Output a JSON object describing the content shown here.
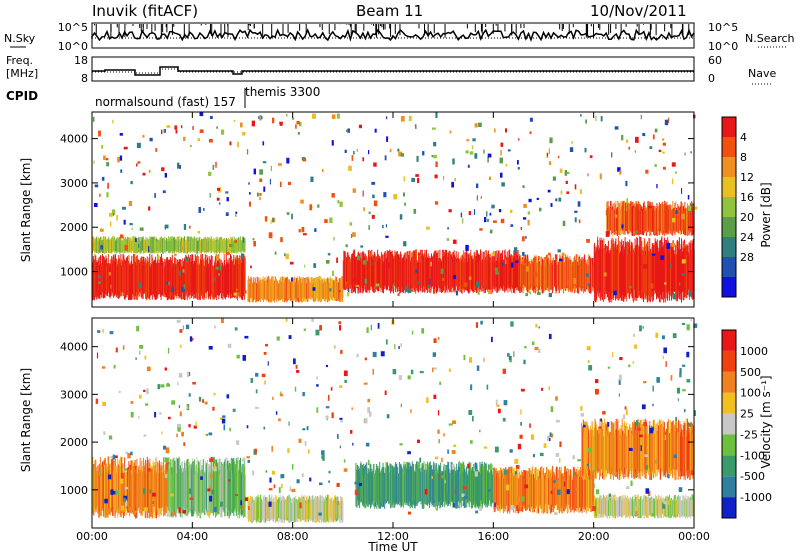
{
  "header": {
    "station": "Inuvik (fitACF)",
    "beam": "Beam 11",
    "date": "10/Nov/2011"
  },
  "noise_panel": {
    "left_label": "N.Sky",
    "right_label": "N.Search",
    "left_ticks": [
      "10^5",
      "10^0"
    ],
    "right_ticks": [
      "10^5",
      "10^0"
    ]
  },
  "freq_panel": {
    "left_label_line1": "Freq.",
    "left_label_line2": "[MHz]",
    "right_label": "Nave",
    "left_ticks": [
      "18",
      "8"
    ],
    "right_ticks": [
      "60",
      "0"
    ]
  },
  "cpid": {
    "label": "CPID",
    "modes": [
      {
        "name": "normalsound (fast) 157",
        "start_hour": 0,
        "end_hour": 6.1
      },
      {
        "name": "themis 3300",
        "start_hour": 6.1,
        "end_hour": 24
      }
    ]
  },
  "chart_data": [
    {
      "type": "heatmap",
      "quantity": "Power",
      "ylabel": "Slant Range [km]",
      "xlabel": "Time UT",
      "xlim_hours": [
        0,
        24
      ],
      "ylim": [
        200,
        4600
      ],
      "x_ticks": [
        "00:00",
        "04:00",
        "08:00",
        "12:00",
        "16:00",
        "20:00",
        "00:00"
      ],
      "y_ticks": [
        1000,
        2000,
        3000,
        4000
      ],
      "colorbar": {
        "label": "Power [dB]",
        "ticks": [
          "4",
          "8",
          "12",
          "16",
          "20",
          "24",
          "28"
        ],
        "colors": [
          "#1010e0",
          "#2050b0",
          "#2f7f80",
          "#5a9e4a",
          "#8fc43c",
          "#e8c020",
          "#f09020",
          "#f05010",
          "#e81818"
        ]
      },
      "regions": [
        {
          "t0": 0.0,
          "t1": 6.1,
          "r0": 350,
          "r1": 1400,
          "level": 8
        },
        {
          "t0": 0.0,
          "t1": 6.1,
          "r0": 1400,
          "r1": 1800,
          "level": 4
        },
        {
          "t0": 6.2,
          "t1": 10.0,
          "r0": 300,
          "r1": 900,
          "level": 6
        },
        {
          "t0": 10.0,
          "t1": 17.0,
          "r0": 500,
          "r1": 1500,
          "level": 8
        },
        {
          "t0": 17.0,
          "t1": 20.0,
          "r0": 500,
          "r1": 1400,
          "level": 7
        },
        {
          "t0": 20.0,
          "t1": 24.0,
          "r0": 300,
          "r1": 1800,
          "level": 8
        },
        {
          "t0": 20.5,
          "t1": 24.0,
          "r0": 1800,
          "r1": 2600,
          "level": 7
        }
      ]
    },
    {
      "type": "heatmap",
      "quantity": "Velocity",
      "ylabel": "Slant Range [km]",
      "xlabel": "Time UT",
      "xlim_hours": [
        0,
        24
      ],
      "ylim": [
        200,
        4600
      ],
      "x_ticks": [
        "00:00",
        "04:00",
        "08:00",
        "12:00",
        "16:00",
        "20:00",
        "00:00"
      ],
      "y_ticks": [
        1000,
        2000,
        3000,
        4000
      ],
      "colorbar": {
        "label": "Velocity [m s⁻¹]",
        "ticks": [
          "1000",
          "500",
          "100",
          "25",
          "-25",
          "-100",
          "-500",
          "-1000"
        ],
        "colors": [
          "#1020c8",
          "#2f7fa0",
          "#3a9a6a",
          "#6cc040",
          "#c8c8c8",
          "#f0c020",
          "#f08020",
          "#f04010",
          "#e81818"
        ]
      },
      "regions": [
        {
          "t0": 0.0,
          "t1": 3.0,
          "r0": 400,
          "r1": 1700,
          "level": 6
        },
        {
          "t0": 3.0,
          "t1": 6.1,
          "r0": 400,
          "r1": 1700,
          "level": 3
        },
        {
          "t0": 6.2,
          "t1": 10.0,
          "r0": 300,
          "r1": 900,
          "level": 4
        },
        {
          "t0": 10.5,
          "t1": 16.0,
          "r0": 600,
          "r1": 1600,
          "level": 2
        },
        {
          "t0": 16.0,
          "t1": 20.0,
          "r0": 500,
          "r1": 1500,
          "level": 6
        },
        {
          "t0": 20.0,
          "t1": 24.0,
          "r0": 400,
          "r1": 900,
          "level": 4
        },
        {
          "t0": 19.5,
          "t1": 24.0,
          "r0": 1200,
          "r1": 2500,
          "level": 6
        }
      ]
    }
  ]
}
